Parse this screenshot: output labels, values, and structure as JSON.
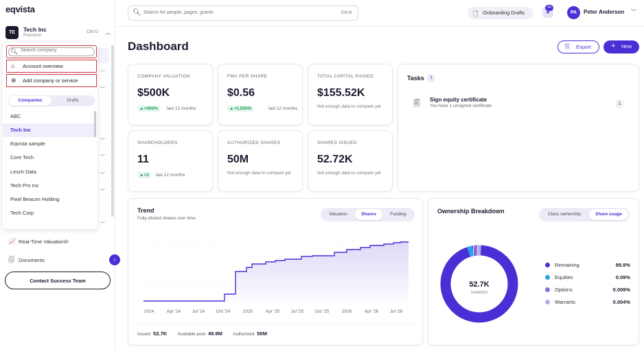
{
  "app": {
    "logo": "eqvista"
  },
  "company": {
    "initials": "TE",
    "name": "Tech Inc",
    "tier": "Premium",
    "shortcut": "Ctrl O"
  },
  "dropdown": {
    "search_placeholder": "Search company",
    "account_overview": "Account overview",
    "add_company": "Add company or service",
    "tabs": [
      "Companies",
      "Drafts"
    ],
    "companies": [
      "ABC",
      "Tech Inc",
      "Eqvista sample",
      "Core Tech",
      "Lesch Data",
      "Tech Pro Inc",
      "Pixel Beacon Holding",
      "Tech Corp"
    ],
    "selected": "Tech Inc"
  },
  "sidebar": {
    "nav": [
      {
        "label": "Real-Time Valuation®",
        "icon": "chart-line-icon"
      },
      {
        "label": "Documents",
        "icon": "documents-icon"
      }
    ],
    "contact_button": "Contact Success Team"
  },
  "topbar": {
    "search_placeholder": "Search for people, pages, grants",
    "search_shortcut": "Ctrl K",
    "onboarding_drafts": "Onboarding Drafts",
    "notifications_count": "54",
    "user": {
      "initials": "PA",
      "name": "Peter Anderson"
    }
  },
  "page": {
    "title": "Dashboard",
    "export_label": "Export",
    "new_label": "New"
  },
  "stats": [
    {
      "label": "Company Valuation",
      "value": "$500K",
      "delta": "▲+400%",
      "period": "last 12 months"
    },
    {
      "label": "FMV per share",
      "value": "$0.56",
      "delta": "▲+5,500%",
      "period": "last 12 months"
    },
    {
      "label": "Total Capital Raised",
      "value": "$155.52K",
      "note": "Not enough data to compare yet"
    },
    {
      "label": "Shareholders",
      "value": "11",
      "delta": "▲+2",
      "period": "last 12 months"
    },
    {
      "label": "Authorized Shares",
      "value": "50M",
      "note": "Not enough data to compare yet"
    },
    {
      "label": "Shares Issued",
      "value": "52.72K",
      "note": "Not enough data to compare yet"
    }
  ],
  "tasks": {
    "title": "Tasks",
    "count": "1",
    "items": [
      {
        "title": "Sign equity certificate",
        "subtitle": "You have 1 unsigned certificate",
        "count": "1"
      }
    ]
  },
  "trend": {
    "title": "Trend",
    "subtitle": "Fully-diluted shares over time",
    "tabs": [
      "Valuation",
      "Shares",
      "Funding"
    ],
    "active_tab": "Shares",
    "x_labels": [
      "2024",
      "Apr '24",
      "Jul '24",
      "Oct '24",
      "2025",
      "Apr '25",
      "Jul '25",
      "Oct '25",
      "2026",
      "Apr '26",
      "Jul '26"
    ],
    "footer": [
      {
        "label": "Issued",
        "value": "52.7K"
      },
      {
        "label": "Available pool",
        "value": "49.9M"
      },
      {
        "label": "Authorized",
        "value": "50M"
      }
    ],
    "accent": "#4b2fd6"
  },
  "ownership": {
    "title": "Ownership Breakdown",
    "tabs": [
      "Class ownership",
      "Share usage"
    ],
    "active_tab": "Share usage",
    "center_value": "52.7K",
    "center_label": "SHARES",
    "legend": [
      {
        "name": "Remaining",
        "value": "99.9%",
        "color": "#4b2fd6"
      },
      {
        "name": "Equities",
        "value": "0.09%",
        "color": "#2aa3e8"
      },
      {
        "name": "Options",
        "value": "0.009%",
        "color": "#8a6be0"
      },
      {
        "name": "Warrants",
        "value": "0.004%",
        "color": "#b8a8ec"
      }
    ]
  }
}
